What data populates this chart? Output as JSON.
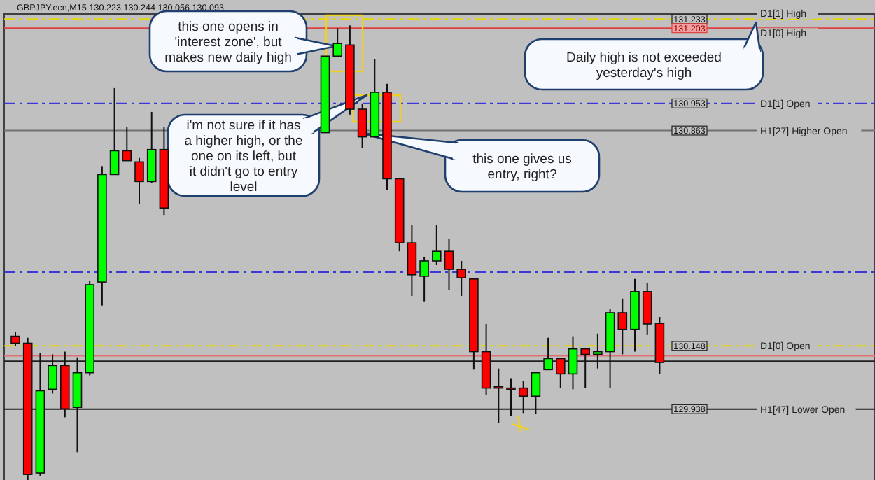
{
  "chart_data": {
    "type": "candlestick",
    "title": "GBPJPY.ecn,M15  130.223 130.244 130.056 130.093",
    "categories": [
      null,
      null,
      null,
      null,
      null,
      null,
      null,
      null,
      null,
      null,
      null,
      null,
      null,
      null,
      null,
      null,
      null,
      null,
      null,
      null,
      null,
      null,
      null,
      null,
      null,
      null,
      null,
      null,
      null,
      null,
      null,
      null,
      null,
      null,
      null,
      null,
      null,
      null,
      null,
      null,
      null,
      null,
      null,
      null,
      null,
      null,
      null,
      null,
      null,
      null,
      null,
      null,
      null
    ],
    "ohlc": [
      [
        130.18,
        130.194,
        130.147,
        130.157
      ],
      [
        130.157,
        130.175,
        129.7,
        129.721
      ],
      [
        129.726,
        130.124,
        129.717,
        129.999
      ],
      [
        130.004,
        130.12,
        129.99,
        130.083
      ],
      [
        130.083,
        130.129,
        129.911,
        129.939
      ],
      [
        129.944,
        130.11,
        129.795,
        130.059
      ],
      [
        130.059,
        130.365,
        130.05,
        130.351
      ],
      [
        130.36,
        130.745,
        130.282,
        130.717
      ],
      [
        130.717,
        131.004,
        130.717,
        130.796
      ],
      [
        130.796,
        130.874,
        130.763,
        130.763
      ],
      [
        130.759,
        130.772,
        130.62,
        130.694
      ],
      [
        130.694,
        130.925,
        130.689,
        130.8
      ],
      [
        130.8,
        130.874,
        130.583,
        130.606
      ],
      null,
      null,
      null,
      null,
      null,
      null,
      null,
      null,
      null,
      null,
      null,
      null,
      [
        130.856,
        131.11,
        130.856,
        131.11
      ],
      [
        131.11,
        131.203,
        131.11,
        131.152
      ],
      [
        131.147,
        131.212,
        130.916,
        130.934
      ],
      [
        130.934,
        130.953,
        130.805,
        130.842
      ],
      [
        130.842,
        131.101,
        130.842,
        130.99
      ],
      [
        130.99,
        131.018,
        130.666,
        130.703
      ],
      [
        130.703,
        130.703,
        130.462,
        130.49
      ],
      [
        130.49,
        130.55,
        130.314,
        130.384
      ],
      [
        130.379,
        130.444,
        130.296,
        130.43
      ],
      [
        130.43,
        130.55,
        130.416,
        130.462
      ],
      [
        130.462,
        130.504,
        130.333,
        130.402
      ],
      [
        130.402,
        130.43,
        130.314,
        130.374
      ],
      [
        130.37,
        130.37,
        130.069,
        130.129
      ],
      [
        130.129,
        130.221,
        129.985,
        130.008
      ],
      [
        130.013,
        130.073,
        129.893,
        130.008
      ],
      [
        130.008,
        130.041,
        129.916,
        130.008
      ],
      [
        130.008,
        130.032,
        129.925,
        129.981
      ],
      [
        129.981,
        130.059,
        129.921,
        130.059
      ],
      [
        130.069,
        130.175,
        130.069,
        130.106
      ],
      [
        130.106,
        130.106,
        130.008,
        130.055
      ],
      [
        130.055,
        130.18,
        130.004,
        130.138
      ],
      [
        130.138,
        130.138,
        130.008,
        130.12
      ],
      [
        130.12,
        130.189,
        130.073,
        130.129
      ],
      [
        130.129,
        130.272,
        130.008,
        130.258
      ],
      [
        130.258,
        130.305,
        130.12,
        130.203
      ],
      [
        130.203,
        130.37,
        130.129,
        130.328
      ],
      [
        130.328,
        130.356,
        130.184,
        130.221
      ],
      [
        130.223,
        130.244,
        130.056,
        130.093
      ]
    ],
    "colors": [
      "#ff0000",
      "#ff0000",
      "#00ff00",
      "#00ff00",
      "#ff0000",
      "#00ff00",
      "#00ff00",
      "#00ff00",
      "#00ff00",
      "#ff0000",
      "#ff0000",
      "#00ff00",
      "#ff0000",
      null,
      null,
      null,
      null,
      null,
      null,
      null,
      null,
      null,
      null,
      null,
      null,
      "#00ff00",
      "#00ff00",
      "#ff0000",
      "#ff0000",
      "#00ff00",
      "#ff0000",
      "#ff0000",
      "#ff0000",
      "#00ff00",
      "#00ff00",
      "#ff0000",
      "#ff0000",
      "#ff0000",
      "#ff0000",
      "#ff0000",
      "#ff0000",
      "#ff0000",
      "#00ff00",
      "#00ff00",
      "#ff0000",
      "#00ff00",
      "#ff0000",
      "#00ff00",
      "#00ff00",
      "#ff0000",
      "#00ff00",
      "#ff0000",
      "#ff0000"
    ],
    "ylim": [
      129.7,
      131.25
    ],
    "yticks": [
      {
        "value": 131.233,
        "label": "131.233"
      },
      {
        "value": 131.203,
        "label": "131.203"
      },
      {
        "value": 130.953,
        "label": "130.953"
      },
      {
        "value": 130.863,
        "label": "130.863"
      },
      {
        "value": 130.148,
        "label": "130.148"
      },
      {
        "value": 129.938,
        "label": "129.938"
      }
    ],
    "tick_labels": "y",
    "ref_lines": [
      {
        "axis": "y",
        "value": 131.233,
        "label": "D1[1] High",
        "color": "#e8d800",
        "line_style": "dashed"
      },
      {
        "axis": "y",
        "value": 131.203,
        "label": "D1[0] High",
        "color": "#e04040",
        "line_style": "solid"
      },
      {
        "axis": "y",
        "value": 130.953,
        "label": "D1[1] Open",
        "color": "#3a3ad8",
        "line_style": "dashed"
      },
      {
        "axis": "y",
        "value": 130.863,
        "label": "H1[27] Higher Open",
        "color": "#707070",
        "line_style": "solid"
      },
      {
        "axis": "y",
        "value": 130.148,
        "label": "D1[0] Open",
        "color": "#e8d800",
        "line_style": "dashed"
      },
      {
        "axis": "y",
        "value": 129.938,
        "label": "H1[47] Lower Open",
        "color": "#202020",
        "line_style": "solid"
      },
      {
        "axis": "y",
        "value": 130.393,
        "color": "#3a3ad8",
        "line_style": "dashed"
      },
      {
        "axis": "y",
        "value": 130.115,
        "color": "#e07070",
        "line_style": "solid"
      },
      {
        "axis": "y",
        "value": 130.097,
        "color": "#202020",
        "line_style": "solid"
      }
    ],
    "annotations": [
      "this one opens in 'interest zone', but makes new daily high",
      "i'm not sure if it has a higher high, or the one on its left, but it didn't go to entry level",
      "this one gives us entry, right?",
      "Daily high is not exceeded yesterday's high"
    ],
    "grid": false
  }
}
